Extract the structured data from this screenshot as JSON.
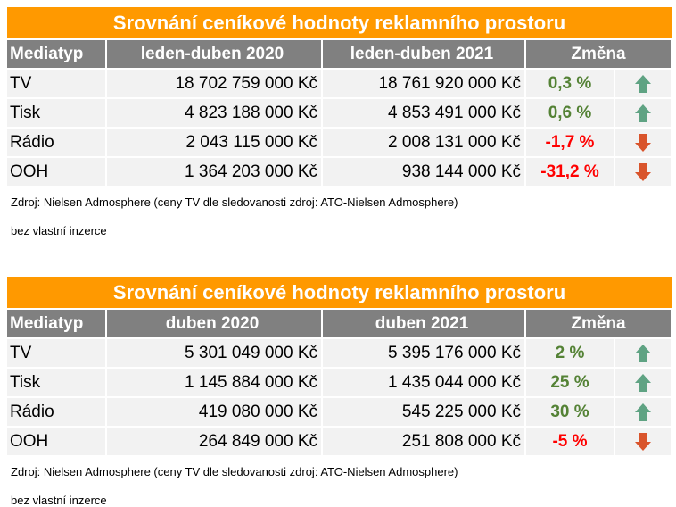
{
  "tables": [
    {
      "title": "Srovnání ceníkové hodnoty reklamního prostoru",
      "headers": [
        "Mediatyp",
        "leden-duben 2020",
        "leden-duben 2021",
        "Změna"
      ],
      "rows": [
        {
          "media": "TV",
          "v1": "18 702 759 000 Kč",
          "v2": "18 761 920 000 Kč",
          "change": "0,3 %",
          "trend": "up"
        },
        {
          "media": "Tisk",
          "v1": "4 823 188 000 Kč",
          "v2": "4 853 491 000 Kč",
          "change": "0,6 %",
          "trend": "up"
        },
        {
          "media": "Rádio",
          "v1": "2 043 115 000 Kč",
          "v2": "2 008 131 000 Kč",
          "change": "-1,7 %",
          "trend": "down"
        },
        {
          "media": "OOH",
          "v1": "1 364 203 000 Kč",
          "v2": "938 144 000 Kč",
          "change": "-31,2 %",
          "trend": "down"
        }
      ],
      "source": "Zdroj: Nielsen Admosphere (ceny TV dle sledovanosti zdroj: ATO-Nielsen Admosphere)",
      "note": "bez vlastní inzerce"
    },
    {
      "title": "Srovnání ceníkové hodnoty reklamního prostoru",
      "headers": [
        "Mediatyp",
        "duben 2020",
        "duben 2021",
        "Změna"
      ],
      "rows": [
        {
          "media": "TV",
          "v1": "5 301 049 000 Kč",
          "v2": "5 395 176 000 Kč",
          "change": "2 %",
          "trend": "up"
        },
        {
          "media": "Tisk",
          "v1": "1 145 884 000 Kč",
          "v2": "1 435 044 000 Kč",
          "change": "25 %",
          "trend": "up"
        },
        {
          "media": "Rádio",
          "v1": "419 080 000 Kč",
          "v2": "545 225 000 Kč",
          "change": "30 %",
          "trend": "up"
        },
        {
          "media": "OOH",
          "v1": "264 849 000 Kč",
          "v2": "251 808 000 Kč",
          "change": "-5 %",
          "trend": "down"
        }
      ],
      "source": "Zdroj: Nielsen Admosphere (ceny TV dle sledovanosti zdroj: ATO-Nielsen Admosphere)",
      "note": "bez vlastní inzerce"
    }
  ],
  "colors": {
    "title_bg": "#FF9900",
    "header_bg": "#808080",
    "cell_bg": "#F2F2F2",
    "up": "#548235",
    "down": "#FF0000",
    "arrow_up": "#5FA383",
    "arrow_down": "#D9542B"
  }
}
